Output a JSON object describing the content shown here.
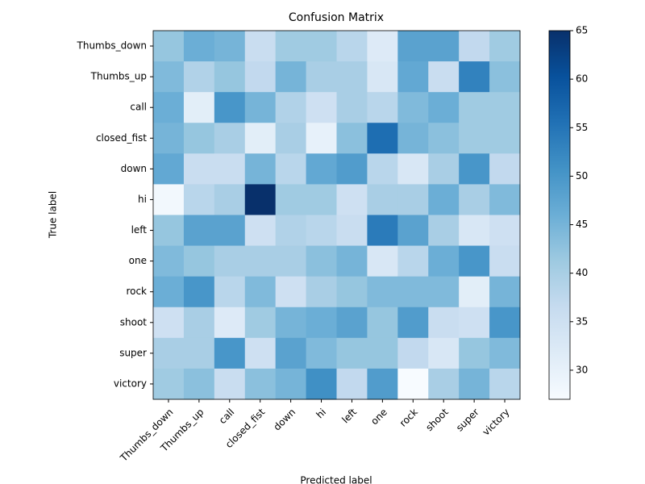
{
  "chart_data": {
    "type": "heatmap",
    "title": "Confusion Matrix",
    "x_label": "Predicted label",
    "y_label": "True label",
    "x_categories": [
      "Thumbs_down",
      "Thumbs_up",
      "call",
      "closed_fist",
      "down",
      "hi",
      "left",
      "one",
      "rock",
      "shoot",
      "super",
      "victory"
    ],
    "y_categories": [
      "Thumbs_down",
      "Thumbs_up",
      "call",
      "closed_fist",
      "down",
      "hi",
      "left",
      "one",
      "rock",
      "shoot",
      "super",
      "victory"
    ],
    "values": [
      [
        42,
        46,
        45,
        36,
        41,
        41,
        38,
        32,
        48,
        48,
        37,
        41
      ],
      [
        44,
        39,
        42,
        37,
        45,
        40,
        40,
        33,
        47,
        36,
        53,
        43
      ],
      [
        46,
        31,
        50,
        45,
        39,
        35,
        40,
        38,
        44,
        46,
        41,
        41
      ],
      [
        45,
        42,
        40,
        31,
        40,
        30,
        43,
        56,
        45,
        43,
        41,
        41
      ],
      [
        47,
        36,
        36,
        45,
        38,
        47,
        49,
        38,
        33,
        40,
        50,
        37
      ],
      [
        28,
        38,
        40,
        65,
        41,
        41,
        35,
        40,
        40,
        46,
        40,
        44
      ],
      [
        42,
        48,
        48,
        35,
        39,
        38,
        36,
        54,
        48,
        40,
        33,
        35
      ],
      [
        44,
        42,
        40,
        40,
        40,
        43,
        45,
        33,
        38,
        46,
        50,
        36
      ],
      [
        46,
        50,
        38,
        44,
        35,
        40,
        42,
        44,
        44,
        44,
        31,
        45
      ],
      [
        35,
        40,
        32,
        41,
        45,
        46,
        48,
        42,
        49,
        36,
        35,
        50
      ],
      [
        40,
        40,
        50,
        35,
        48,
        44,
        42,
        42,
        37,
        33,
        42,
        44
      ],
      [
        41,
        43,
        36,
        43,
        45,
        51,
        37,
        49,
        27,
        40,
        45,
        38
      ]
    ],
    "colormap": "Blues",
    "zlim": [
      27,
      65
    ],
    "zticks": [
      30,
      35,
      40,
      45,
      50,
      55,
      60,
      65
    ]
  }
}
